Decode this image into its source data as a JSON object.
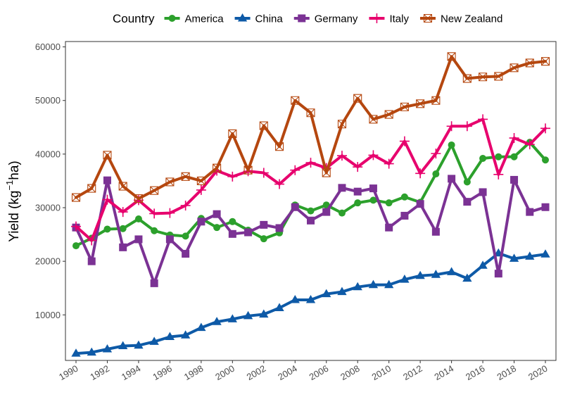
{
  "chart_data": {
    "type": "line",
    "title": "",
    "xlabel": "",
    "ylabel_main": "Yield (kg",
    "ylabel_sup": "−1",
    "ylabel_end": "ha)",
    "legend_title": "Country",
    "legend_position": "top",
    "grid": false,
    "xlim": [
      1990,
      2020
    ],
    "ylim": [
      1500,
      61000
    ],
    "x_ticks": [
      1990,
      1992,
      1994,
      1996,
      1998,
      2000,
      2002,
      2004,
      2006,
      2008,
      2010,
      2012,
      2014,
      2016,
      2018,
      2020
    ],
    "x_tick_labels": [
      "1990",
      "1992",
      "1994",
      "1996",
      "1998",
      "2000",
      "2002",
      "2004",
      "2006",
      "2008",
      "2010",
      "2012",
      "2014",
      "2016",
      "2018",
      "2020"
    ],
    "y_ticks": [
      10000,
      20000,
      30000,
      40000,
      50000,
      60000
    ],
    "y_tick_labels": [
      "10000",
      "20000",
      "30000",
      "40000",
      "50000",
      "60000"
    ],
    "x": [
      1990,
      1991,
      1992,
      1993,
      1994,
      1995,
      1996,
      1997,
      1998,
      1999,
      2000,
      2001,
      2002,
      2003,
      2004,
      2005,
      2006,
      2007,
      2008,
      2009,
      2010,
      2011,
      2012,
      2013,
      2014,
      2015,
      2016,
      2017,
      2018,
      2019,
      2020
    ],
    "series": [
      {
        "name": "America",
        "color": "#2ca02c",
        "marker": "circle",
        "values": [
          22900,
          24300,
          26000,
          26100,
          27900,
          25700,
          24900,
          24700,
          28000,
          26300,
          27400,
          25800,
          24200,
          25300,
          30500,
          29400,
          30500,
          29000,
          30900,
          31400,
          30900,
          32000,
          31000,
          36300,
          41700,
          34800,
          39200,
          39500,
          39500,
          42200,
          38900
        ]
      },
      {
        "name": "China",
        "color": "#0e5aa7",
        "marker": "triangle",
        "values": [
          2800,
          3000,
          3600,
          4200,
          4300,
          5000,
          5900,
          6200,
          7600,
          8700,
          9200,
          9800,
          10100,
          11300,
          12800,
          12800,
          13900,
          14300,
          15200,
          15600,
          15600,
          16600,
          17300,
          17500,
          18000,
          16800,
          19200,
          21500,
          20500,
          20900,
          21300
        ]
      },
      {
        "name": "Germany",
        "color": "#7b3294",
        "marker": "square",
        "values": [
          26300,
          20000,
          35100,
          22600,
          24100,
          15900,
          24100,
          21400,
          27400,
          28800,
          25100,
          25400,
          26800,
          26200,
          30100,
          27600,
          29200,
          33700,
          33000,
          33600,
          26300,
          28500,
          30700,
          25500,
          35400,
          31100,
          32900,
          17700,
          35200,
          29200,
          30100
        ]
      },
      {
        "name": "Italy",
        "color": "#e7006d",
        "marker": "plus",
        "values": [
          26500,
          23900,
          31500,
          29200,
          31400,
          28900,
          29000,
          30400,
          33300,
          36900,
          35800,
          36800,
          36500,
          34400,
          37000,
          38400,
          37400,
          39700,
          37600,
          39800,
          38200,
          42400,
          36400,
          40100,
          45200,
          45200,
          46500,
          36200,
          43000,
          41800,
          44800
        ]
      },
      {
        "name": "New Zealand",
        "color": "#b5470f",
        "marker": "box-x",
        "values": [
          31900,
          33600,
          39800,
          34000,
          31700,
          33200,
          34800,
          35800,
          35000,
          37400,
          43800,
          37000,
          45300,
          41400,
          50000,
          47700,
          36500,
          45600,
          50400,
          46500,
          47400,
          48800,
          49400,
          50000,
          58200,
          54100,
          54400,
          54500,
          56100,
          57000,
          57300
        ]
      }
    ]
  }
}
